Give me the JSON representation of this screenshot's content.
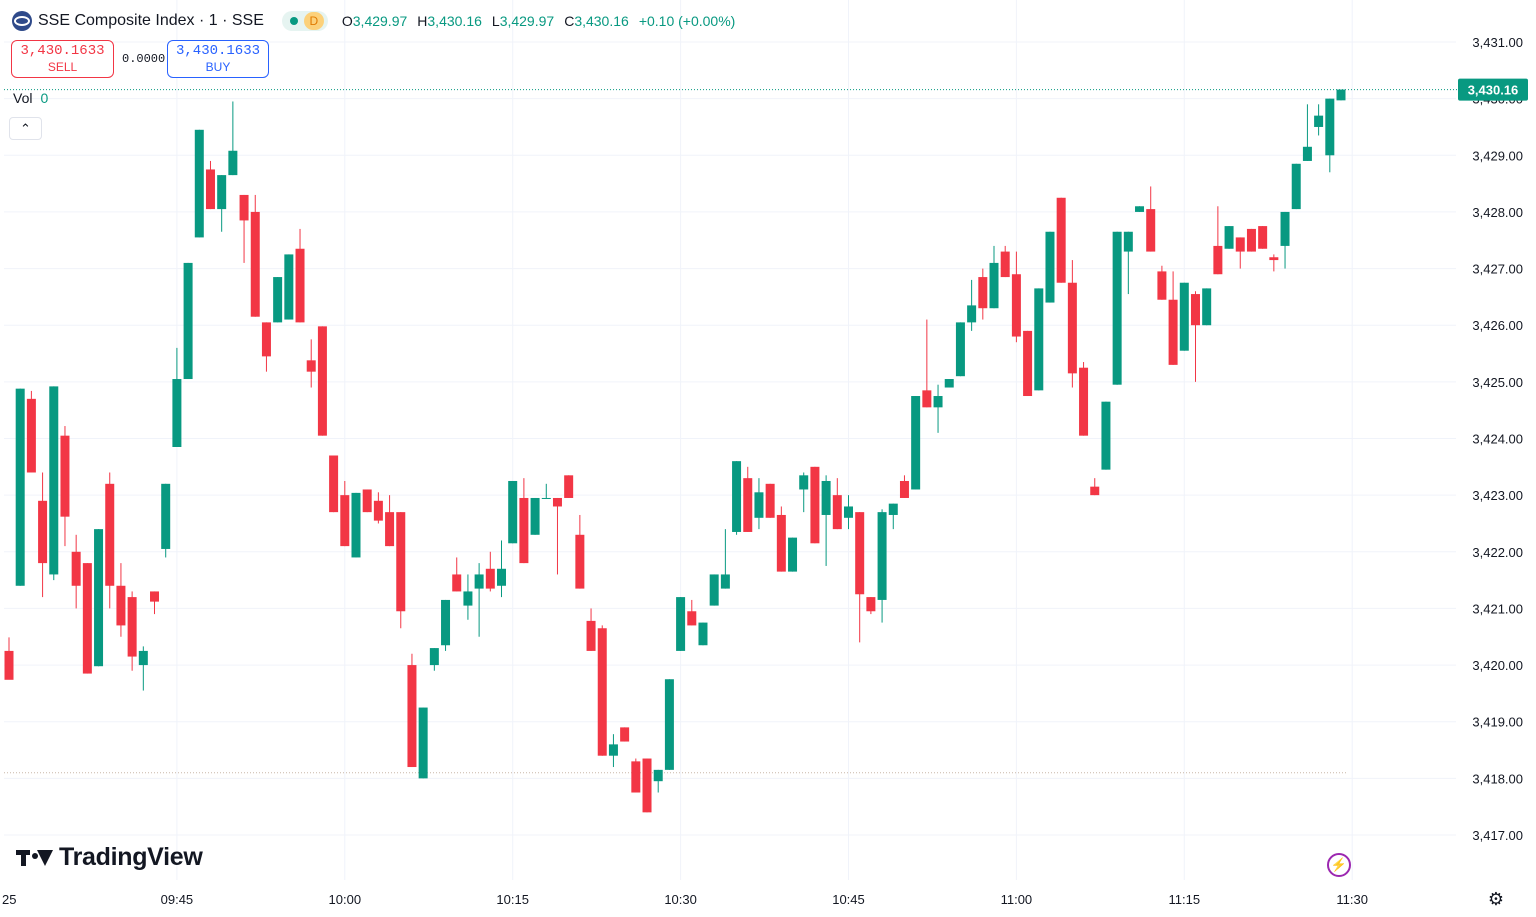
{
  "legend": {
    "symbol": "SSE Composite Index · 1 · SSE",
    "status_letter": "D",
    "open_label": "O",
    "open": "3,429.97",
    "high_label": "H",
    "high": "3,430.16",
    "low_label": "L",
    "low": "3,429.97",
    "close_label": "C",
    "close": "3,430.16",
    "change": "+0.10 (+0.00%)"
  },
  "trading": {
    "sell_price": "3,430.1633",
    "sell_label": "SELL",
    "spread": "0.0000",
    "buy_price": "3,430.1633",
    "buy_label": "BUY"
  },
  "volume": {
    "label": "Vol",
    "value": "0"
  },
  "watermark": {
    "text": "TradingView"
  },
  "colors": {
    "up": "#089981",
    "down": "#f23645",
    "grid": "#f0f3fa",
    "last_price": "#089981"
  },
  "chart_data": {
    "type": "candlestick",
    "interval_minutes": 1,
    "y_ticks": [
      "3,417.00",
      "3,418.00",
      "3,419.00",
      "3,420.00",
      "3,421.00",
      "3,422.00",
      "3,423.00",
      "3,424.00",
      "3,425.00",
      "3,426.00",
      "3,427.00",
      "3,428.00",
      "3,429.00",
      "3,430.00",
      "3,431.00"
    ],
    "ylim": [
      3416.45,
      3431.35
    ],
    "x_ticks": [
      "25",
      "09:45",
      "10:00",
      "10:15",
      "10:30",
      "10:45",
      "11:00",
      "11:15",
      "11:30"
    ],
    "x_range": [
      "09:30",
      "11:31"
    ],
    "last_price": "3,430.16",
    "reference_price": 3418.1,
    "candles": [
      [
        "09:30",
        3420.25,
        3419.74,
        3420.49,
        3419.85
      ],
      [
        "09:31",
        3421.4,
        3424.88,
        3424.88,
        3421.4
      ],
      [
        "09:32",
        3424.7,
        3423.4,
        3424.84,
        3423.4
      ],
      [
        "09:33",
        3422.9,
        3421.8,
        3423.4,
        3421.2
      ],
      [
        "09:34",
        3421.6,
        3424.92,
        3424.92,
        3421.5
      ],
      [
        "09:35",
        3424.05,
        3422.62,
        3424.22,
        3422.1
      ],
      [
        "09:36",
        3422.0,
        3421.4,
        3422.3,
        3421.0
      ],
      [
        "09:37",
        3421.8,
        3419.85,
        3421.8,
        3419.85
      ],
      [
        "09:38",
        3419.98,
        3422.4,
        3422.4,
        3419.98
      ],
      [
        "09:39",
        3423.2,
        3421.4,
        3423.4,
        3421.0
      ],
      [
        "09:40",
        3421.4,
        3420.7,
        3421.8,
        3420.5
      ],
      [
        "09:41",
        3421.2,
        3420.15,
        3421.3,
        3419.9
      ],
      [
        "09:42",
        3420.0,
        3420.25,
        3420.33,
        3419.55
      ],
      [
        "09:43",
        3421.3,
        3421.12,
        3421.3,
        3420.9
      ],
      [
        "09:44",
        3422.05,
        3423.2,
        3423.2,
        3421.9
      ],
      [
        "09:45",
        3423.85,
        3425.05,
        3425.6,
        3423.85
      ],
      [
        "09:46",
        3425.05,
        3427.1,
        3427.1,
        3425.05
      ],
      [
        "09:47",
        3427.55,
        3429.45,
        3429.45,
        3427.55
      ],
      [
        "09:48",
        3428.75,
        3428.05,
        3428.9,
        3428.05
      ],
      [
        "09:49",
        3428.05,
        3428.65,
        3428.65,
        3427.65
      ],
      [
        "09:50",
        3428.65,
        3429.08,
        3429.95,
        3428.65
      ],
      [
        "09:51",
        3428.3,
        3427.85,
        3428.3,
        3427.1
      ],
      [
        "09:52",
        3428.0,
        3426.15,
        3428.3,
        3426.15
      ],
      [
        "09:53",
        3426.05,
        3425.45,
        3426.05,
        3425.18
      ],
      [
        "09:54",
        3426.05,
        3426.85,
        3426.85,
        3426.05
      ],
      [
        "09:55",
        3426.1,
        3427.25,
        3427.25,
        3426.1
      ],
      [
        "09:56",
        3427.35,
        3426.05,
        3427.7,
        3426.05
      ],
      [
        "09:57",
        3425.38,
        3425.18,
        3425.75,
        3424.9
      ],
      [
        "09:58",
        3425.98,
        3424.05,
        3425.98,
        3424.05
      ],
      [
        "09:59",
        3423.7,
        3422.7,
        3423.7,
        3422.7
      ],
      [
        "10:00",
        3423.0,
        3422.1,
        3423.25,
        3422.1
      ],
      [
        "10:01",
        3421.9,
        3423.04,
        3423.04,
        3421.9
      ],
      [
        "10:02",
        3423.1,
        3422.7,
        3423.1,
        3422.7
      ],
      [
        "10:03",
        3422.9,
        3422.55,
        3423.05,
        3422.5
      ],
      [
        "10:04",
        3422.7,
        3422.1,
        3423.0,
        3422.1
      ],
      [
        "10:05",
        3422.7,
        3420.95,
        3422.7,
        3420.65
      ],
      [
        "10:06",
        3420.0,
        3418.2,
        3420.2,
        3418.2
      ],
      [
        "10:07",
        3418.0,
        3419.25,
        3419.25,
        3418.0
      ],
      [
        "10:08",
        3420.0,
        3420.3,
        3420.3,
        3419.9
      ],
      [
        "10:09",
        3420.35,
        3421.15,
        3421.15,
        3420.25
      ],
      [
        "10:10",
        3421.6,
        3421.3,
        3421.9,
        3421.3
      ],
      [
        "10:11",
        3421.05,
        3421.3,
        3421.6,
        3420.8
      ],
      [
        "10:12",
        3421.35,
        3421.6,
        3421.8,
        3420.5
      ],
      [
        "10:13",
        3421.7,
        3421.35,
        3422.0,
        3421.3
      ],
      [
        "10:14",
        3421.4,
        3421.7,
        3422.2,
        3421.2
      ],
      [
        "10:15",
        3422.15,
        3423.25,
        3423.25,
        3422.15
      ],
      [
        "10:16",
        3422.95,
        3421.8,
        3423.3,
        3421.8
      ],
      [
        "10:17",
        3422.3,
        3422.95,
        3422.95,
        3422.3
      ],
      [
        "10:18",
        3422.95,
        3422.95,
        3423.2,
        3422.95
      ],
      [
        "10:19",
        3422.95,
        3422.8,
        3422.95,
        3421.6
      ],
      [
        "10:20",
        3423.35,
        3422.95,
        3423.35,
        3422.95
      ],
      [
        "10:21",
        3422.3,
        3421.35,
        3422.65,
        3421.35
      ],
      [
        "10:22",
        3420.78,
        3420.25,
        3421.0,
        3420.25
      ],
      [
        "10:23",
        3420.65,
        3418.4,
        3420.7,
        3418.4
      ],
      [
        "10:24",
        3418.4,
        3418.6,
        3418.78,
        3418.2
      ],
      [
        "10:25",
        3418.9,
        3418.65,
        3418.9,
        3418.65
      ],
      [
        "10:26",
        3418.3,
        3417.75,
        3418.35,
        3417.75
      ],
      [
        "10:27",
        3418.35,
        3417.4,
        3418.35,
        3417.4
      ],
      [
        "10:28",
        3417.95,
        3418.15,
        3418.15,
        3417.75
      ],
      [
        "10:29",
        3418.15,
        3419.75,
        3419.75,
        3418.15
      ],
      [
        "10:30",
        3420.25,
        3421.2,
        3421.2,
        3420.25
      ],
      [
        "10:31",
        3420.95,
        3420.7,
        3421.15,
        3420.7
      ],
      [
        "10:32",
        3420.35,
        3420.75,
        3420.75,
        3420.35
      ],
      [
        "10:33",
        3421.05,
        3421.6,
        3421.6,
        3421.05
      ],
      [
        "10:34",
        3421.35,
        3421.6,
        3422.4,
        3421.35
      ],
      [
        "10:35",
        3422.35,
        3423.6,
        3423.6,
        3422.3
      ],
      [
        "10:36",
        3423.3,
        3422.35,
        3423.5,
        3422.35
      ],
      [
        "10:37",
        3422.6,
        3423.05,
        3423.3,
        3422.4
      ],
      [
        "10:38",
        3423.2,
        3422.6,
        3423.2,
        3422.6
      ],
      [
        "10:39",
        3422.65,
        3421.65,
        3422.8,
        3421.65
      ],
      [
        "10:40",
        3421.65,
        3422.25,
        3422.25,
        3421.65
      ],
      [
        "10:41",
        3423.1,
        3423.35,
        3423.4,
        3422.7
      ],
      [
        "10:42",
        3423.5,
        3422.15,
        3423.5,
        3422.15
      ],
      [
        "10:43",
        3422.65,
        3423.25,
        3423.35,
        3421.75
      ],
      [
        "10:44",
        3423.0,
        3422.4,
        3423.3,
        3422.4
      ],
      [
        "10:45",
        3422.6,
        3422.8,
        3423.0,
        3422.4
      ],
      [
        "10:46",
        3422.7,
        3421.25,
        3422.7,
        3420.4
      ],
      [
        "10:47",
        3421.2,
        3420.95,
        3421.2,
        3420.9
      ],
      [
        "10:48",
        3421.15,
        3422.7,
        3422.75,
        3420.75
      ],
      [
        "10:49",
        3422.65,
        3422.85,
        3422.85,
        3422.4
      ],
      [
        "10:50",
        3423.25,
        3422.95,
        3423.35,
        3422.95
      ],
      [
        "10:51",
        3423.1,
        3424.75,
        3424.75,
        3423.1
      ],
      [
        "10:52",
        3424.85,
        3424.55,
        3426.1,
        3424.55
      ],
      [
        "10:53",
        3424.55,
        3424.75,
        3424.95,
        3424.1
      ],
      [
        "10:54",
        3424.9,
        3425.05,
        3425.05,
        3424.9
      ],
      [
        "10:55",
        3425.1,
        3426.05,
        3426.05,
        3425.1
      ],
      [
        "10:56",
        3426.05,
        3426.35,
        3426.8,
        3425.9
      ],
      [
        "10:57",
        3426.85,
        3426.3,
        3427.0,
        3426.1
      ],
      [
        "10:58",
        3426.3,
        3427.1,
        3427.4,
        3426.3
      ],
      [
        "10:59",
        3427.3,
        3426.85,
        3427.4,
        3426.85
      ],
      [
        "11:00",
        3426.9,
        3425.8,
        3427.3,
        3425.7
      ],
      [
        "11:01",
        3425.9,
        3424.75,
        3425.9,
        3424.75
      ],
      [
        "11:02",
        3424.85,
        3426.65,
        3426.65,
        3424.85
      ],
      [
        "11:03",
        3426.4,
        3427.65,
        3427.65,
        3426.4
      ],
      [
        "11:04",
        3428.25,
        3426.75,
        3428.25,
        3426.75
      ],
      [
        "11:05",
        3426.75,
        3425.15,
        3427.15,
        3424.9
      ],
      [
        "11:06",
        3425.25,
        3424.05,
        3425.35,
        3424.05
      ],
      [
        "11:07",
        3423.15,
        3423.0,
        3423.3,
        3423.0
      ],
      [
        "11:08",
        3423.45,
        3424.65,
        3424.65,
        3423.45
      ],
      [
        "11:09",
        3424.95,
        3427.65,
        3427.65,
        3424.95
      ],
      [
        "11:10",
        3427.3,
        3427.65,
        3427.65,
        3426.55
      ],
      [
        "11:11",
        3428.0,
        3428.1,
        3428.1,
        3428.0
      ],
      [
        "11:12",
        3428.05,
        3427.3,
        3428.45,
        3427.3
      ],
      [
        "11:13",
        3426.95,
        3426.45,
        3427.05,
        3426.45
      ],
      [
        "11:14",
        3426.45,
        3425.3,
        3426.95,
        3425.3
      ],
      [
        "11:15",
        3425.55,
        3426.75,
        3426.75,
        3425.55
      ],
      [
        "11:16",
        3426.55,
        3426.0,
        3426.6,
        3425.0
      ],
      [
        "11:17",
        3426.0,
        3426.65,
        3426.65,
        3426.0
      ],
      [
        "11:18",
        3427.4,
        3426.9,
        3428.1,
        3426.9
      ],
      [
        "11:19",
        3427.35,
        3427.75,
        3427.75,
        3427.35
      ],
      [
        "11:20",
        3427.55,
        3427.3,
        3427.55,
        3427.0
      ],
      [
        "11:21",
        3427.7,
        3427.3,
        3427.7,
        3427.3
      ],
      [
        "11:22",
        3427.75,
        3427.35,
        3427.75,
        3427.35
      ],
      [
        "11:23",
        3427.2,
        3427.15,
        3427.25,
        3426.95
      ],
      [
        "11:24",
        3427.4,
        3428.0,
        3428.0,
        3427.0
      ],
      [
        "11:25",
        3428.05,
        3428.85,
        3428.85,
        3428.05
      ],
      [
        "11:26",
        3428.9,
        3429.15,
        3429.9,
        3428.9
      ],
      [
        "11:27",
        3429.5,
        3429.7,
        3429.9,
        3429.35
      ],
      [
        "11:28",
        3429.0,
        3430.0,
        3430.0,
        3428.7
      ],
      [
        "11:29",
        3429.97,
        3430.16,
        3430.16,
        3429.97
      ]
    ]
  }
}
